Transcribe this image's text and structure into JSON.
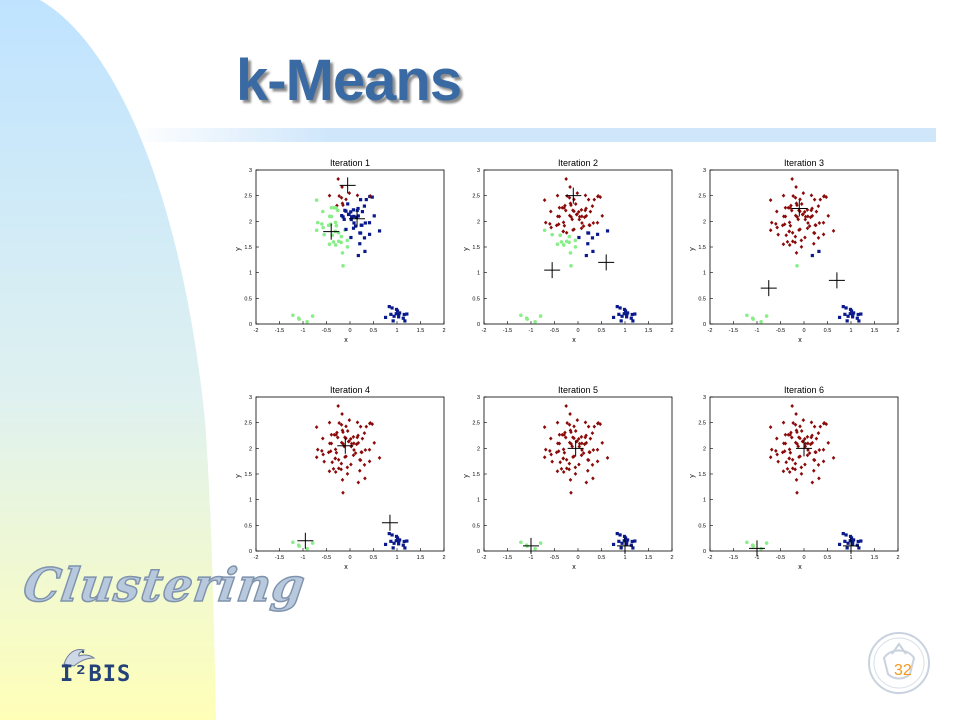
{
  "slide": {
    "title": "k-Means",
    "page_number": "32",
    "watermark_text": "Clustering",
    "logo_text": "I²BIS",
    "accent_color": "#3a6aa3",
    "page_number_color": "#f39a1e"
  },
  "chart_data": [
    {
      "type": "scatter",
      "title": "Iteration 1",
      "xlabel": "x",
      "ylabel": "y",
      "xlim": [
        -2,
        2
      ],
      "ylim": [
        0,
        3
      ],
      "xticks": [
        "-2",
        "-1.5",
        "-1",
        "-0.5",
        "0",
        "0.5",
        "1",
        "1.5",
        "2"
      ],
      "yticks": [
        "0",
        "0.5",
        "1",
        "1.5",
        "2",
        "2.5",
        "3"
      ],
      "centroids": [
        [
          -0.05,
          2.7
        ],
        [
          0.15,
          2.05
        ],
        [
          -0.4,
          1.8
        ]
      ],
      "cluster_sizes": [
        30,
        45,
        45
      ]
    },
    {
      "type": "scatter",
      "title": "Iteration 2",
      "xlabel": "x",
      "ylabel": "y",
      "xlim": [
        -2,
        2
      ],
      "ylim": [
        0,
        3
      ],
      "xticks": [
        "-2",
        "-1.5",
        "-1",
        "-0.5",
        "0",
        "0.5",
        "1",
        "1.5",
        "2"
      ],
      "yticks": [
        "0",
        "0.5",
        "1",
        "1.5",
        "2",
        "2.5",
        "3"
      ],
      "centroids": [
        [
          -0.1,
          2.5
        ],
        [
          0.6,
          1.2
        ],
        [
          -0.55,
          1.05
        ]
      ],
      "cluster_sizes": [
        45,
        55,
        20
      ]
    },
    {
      "type": "scatter",
      "title": "Iteration 3",
      "xlabel": "x",
      "ylabel": "y",
      "xlim": [
        -2,
        2
      ],
      "ylim": [
        0,
        3
      ],
      "xticks": [
        "-2",
        "-1.5",
        "-1",
        "-0.5",
        "0",
        "0.5",
        "1",
        "1.5",
        "2"
      ],
      "yticks": [
        "0",
        "0.5",
        "1",
        "1.5",
        "2",
        "2.5",
        "3"
      ],
      "centroids": [
        [
          -0.1,
          2.25
        ],
        [
          0.7,
          0.85
        ],
        [
          -0.75,
          0.7
        ]
      ],
      "cluster_sizes": [
        75,
        25,
        20
      ]
    },
    {
      "type": "scatter",
      "title": "Iteration 4",
      "xlabel": "x",
      "ylabel": "y",
      "xlim": [
        -2,
        2
      ],
      "ylim": [
        0,
        3
      ],
      "xticks": [
        "-2",
        "-1.5",
        "-1",
        "-0.5",
        "0",
        "0.5",
        "1",
        "1.5",
        "2"
      ],
      "yticks": [
        "0",
        "0.5",
        "1",
        "1.5",
        "2",
        "2.5",
        "3"
      ],
      "centroids": [
        [
          -0.1,
          2.05
        ],
        [
          0.85,
          0.55
        ],
        [
          -0.95,
          0.2
        ]
      ],
      "cluster_sizes": [
        85,
        20,
        15
      ]
    },
    {
      "type": "scatter",
      "title": "Iteration 5",
      "xlabel": "x",
      "ylabel": "y",
      "xlim": [
        -2,
        2
      ],
      "ylim": [
        0,
        3
      ],
      "xticks": [
        "-2",
        "-1.5",
        "-1",
        "-0.5",
        "0",
        "0.5",
        "1",
        "1.5",
        "2"
      ],
      "yticks": [
        "0",
        "0.5",
        "1",
        "1.5",
        "2",
        "2.5",
        "3"
      ],
      "centroids": [
        [
          -0.05,
          2.0
        ],
        [
          1.0,
          0.1
        ],
        [
          -1.0,
          0.1
        ]
      ],
      "cluster_sizes": [
        85,
        20,
        15
      ]
    },
    {
      "type": "scatter",
      "title": "Iteration 6",
      "xlabel": "x",
      "ylabel": "y",
      "xlim": [
        -2,
        2
      ],
      "ylim": [
        0,
        3
      ],
      "xticks": [
        "-2",
        "-1.5",
        "-1",
        "-0.5",
        "0",
        "0.5",
        "1",
        "1.5",
        "2"
      ],
      "yticks": [
        "0",
        "0.5",
        "1",
        "1.5",
        "2",
        "2.5",
        "3"
      ],
      "centroids": [
        [
          0.0,
          2.0
        ],
        [
          1.0,
          0.1
        ],
        [
          -1.0,
          0.05
        ]
      ],
      "cluster_sizes": [
        85,
        20,
        15
      ]
    }
  ]
}
